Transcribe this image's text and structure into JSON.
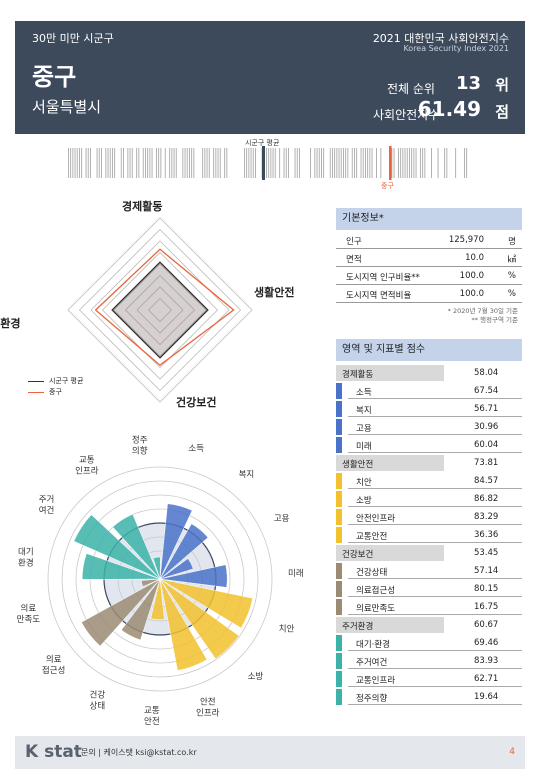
{
  "header": {
    "group": "30만 미만 시군구",
    "report_title": "2021 대한민국 사회안전지수",
    "report_title_en": "Korea Security Index 2021",
    "district": "중구",
    "city": "서울특별시",
    "rank_label": "전체 순위",
    "rank_value": "13",
    "rank_unit": "위",
    "score_label": "사회안전지수",
    "score_value": "61.49",
    "score_unit": "점"
  },
  "barcode": {
    "avg_label": "시군구 평균",
    "self_label": "중구"
  },
  "radar": {
    "axes": [
      "경제활동",
      "생활안전",
      "건강보건",
      "주거환경"
    ],
    "legend_avg": "시군구 평균",
    "legend_self": "중구",
    "colors": {
      "avg": "#333333",
      "self": "#e8643c"
    },
    "avg_values": [
      0.52,
      0.52,
      0.52,
      0.52
    ],
    "self_values": [
      0.66,
      0.8,
      0.6,
      0.7
    ]
  },
  "basic": {
    "title": "기본정보*",
    "rows": [
      {
        "label": "인구",
        "value": "125,970",
        "unit": "명"
      },
      {
        "label": "면적",
        "value": "10.0",
        "unit": "㎢"
      },
      {
        "label": "도시지역 인구비율**",
        "value": "100.0",
        "unit": "%"
      },
      {
        "label": "도시지역 면적비율",
        "value": "100.0",
        "unit": "%"
      }
    ],
    "note1": "* 2020년 7월 30일 기준",
    "note2": "** 행정구역 기준"
  },
  "scores": {
    "title": "영역 및 지표별 점수",
    "categories": [
      {
        "name": "경제활동",
        "value": "58.04",
        "color": "#4a72c9",
        "items": [
          {
            "name": "소득",
            "value": "67.54"
          },
          {
            "name": "복지",
            "value": "56.71"
          },
          {
            "name": "고용",
            "value": "30.96"
          },
          {
            "name": "미래",
            "value": "60.04"
          }
        ]
      },
      {
        "name": "생활안전",
        "value": "73.81",
        "color": "#f2c12e",
        "items": [
          {
            "name": "치안",
            "value": "84.57"
          },
          {
            "name": "소방",
            "value": "86.82"
          },
          {
            "name": "안전인프라",
            "value": "83.29"
          },
          {
            "name": "교통안전",
            "value": "36.36"
          }
        ]
      },
      {
        "name": "건강보건",
        "value": "53.45",
        "color": "#9b8b73",
        "items": [
          {
            "name": "건강상태",
            "value": "57.14"
          },
          {
            "name": "의료접근성",
            "value": "80.15"
          },
          {
            "name": "의료만족도",
            "value": "16.75"
          }
        ]
      },
      {
        "name": "주거환경",
        "value": "60.67",
        "color": "#3bb3a8",
        "items": [
          {
            "name": "대기·환경",
            "value": "69.46"
          },
          {
            "name": "주거여건",
            "value": "83.93"
          },
          {
            "name": "교통인프라",
            "value": "62.71"
          },
          {
            "name": "정주의향",
            "value": "19.64"
          }
        ]
      }
    ]
  },
  "polar_labels": [
    "소득",
    "복지",
    "고용",
    "미래",
    "치안",
    "소방",
    "안전\n인프라",
    "교통\n안전",
    "건강\n상태",
    "의료\n접근성",
    "의료\n만족도",
    "대기\n환경",
    "주거\n여건",
    "교통\n인프라",
    "정주\n의향"
  ],
  "chart_data": {
    "type": "polar-bar",
    "categories": [
      "소득",
      "복지",
      "고용",
      "미래",
      "치안",
      "소방",
      "안전인프라",
      "교통안전",
      "건강상태",
      "의료접근성",
      "의료만족도",
      "대기환경",
      "주거여건",
      "교통인프라",
      "정주의향"
    ],
    "values": [
      67.54,
      56.71,
      30.96,
      60.04,
      84.57,
      86.82,
      83.29,
      36.36,
      57.14,
      80.15,
      16.75,
      69.46,
      83.93,
      62.71,
      19.64
    ],
    "colors": [
      "#4a72c9",
      "#4a72c9",
      "#4a72c9",
      "#4a72c9",
      "#f2c12e",
      "#f2c12e",
      "#f2c12e",
      "#f2c12e",
      "#9b8b73",
      "#9b8b73",
      "#9b8b73",
      "#3bb3a8",
      "#3bb3a8",
      "#3bb3a8",
      "#3bb3a8"
    ],
    "ylim": [
      0,
      100
    ],
    "avg_ring": 50
  },
  "footer": {
    "brand": "K stat",
    "contact": "문의 | 케이스탯 ksi@kstat.co.kr",
    "page": "4"
  }
}
